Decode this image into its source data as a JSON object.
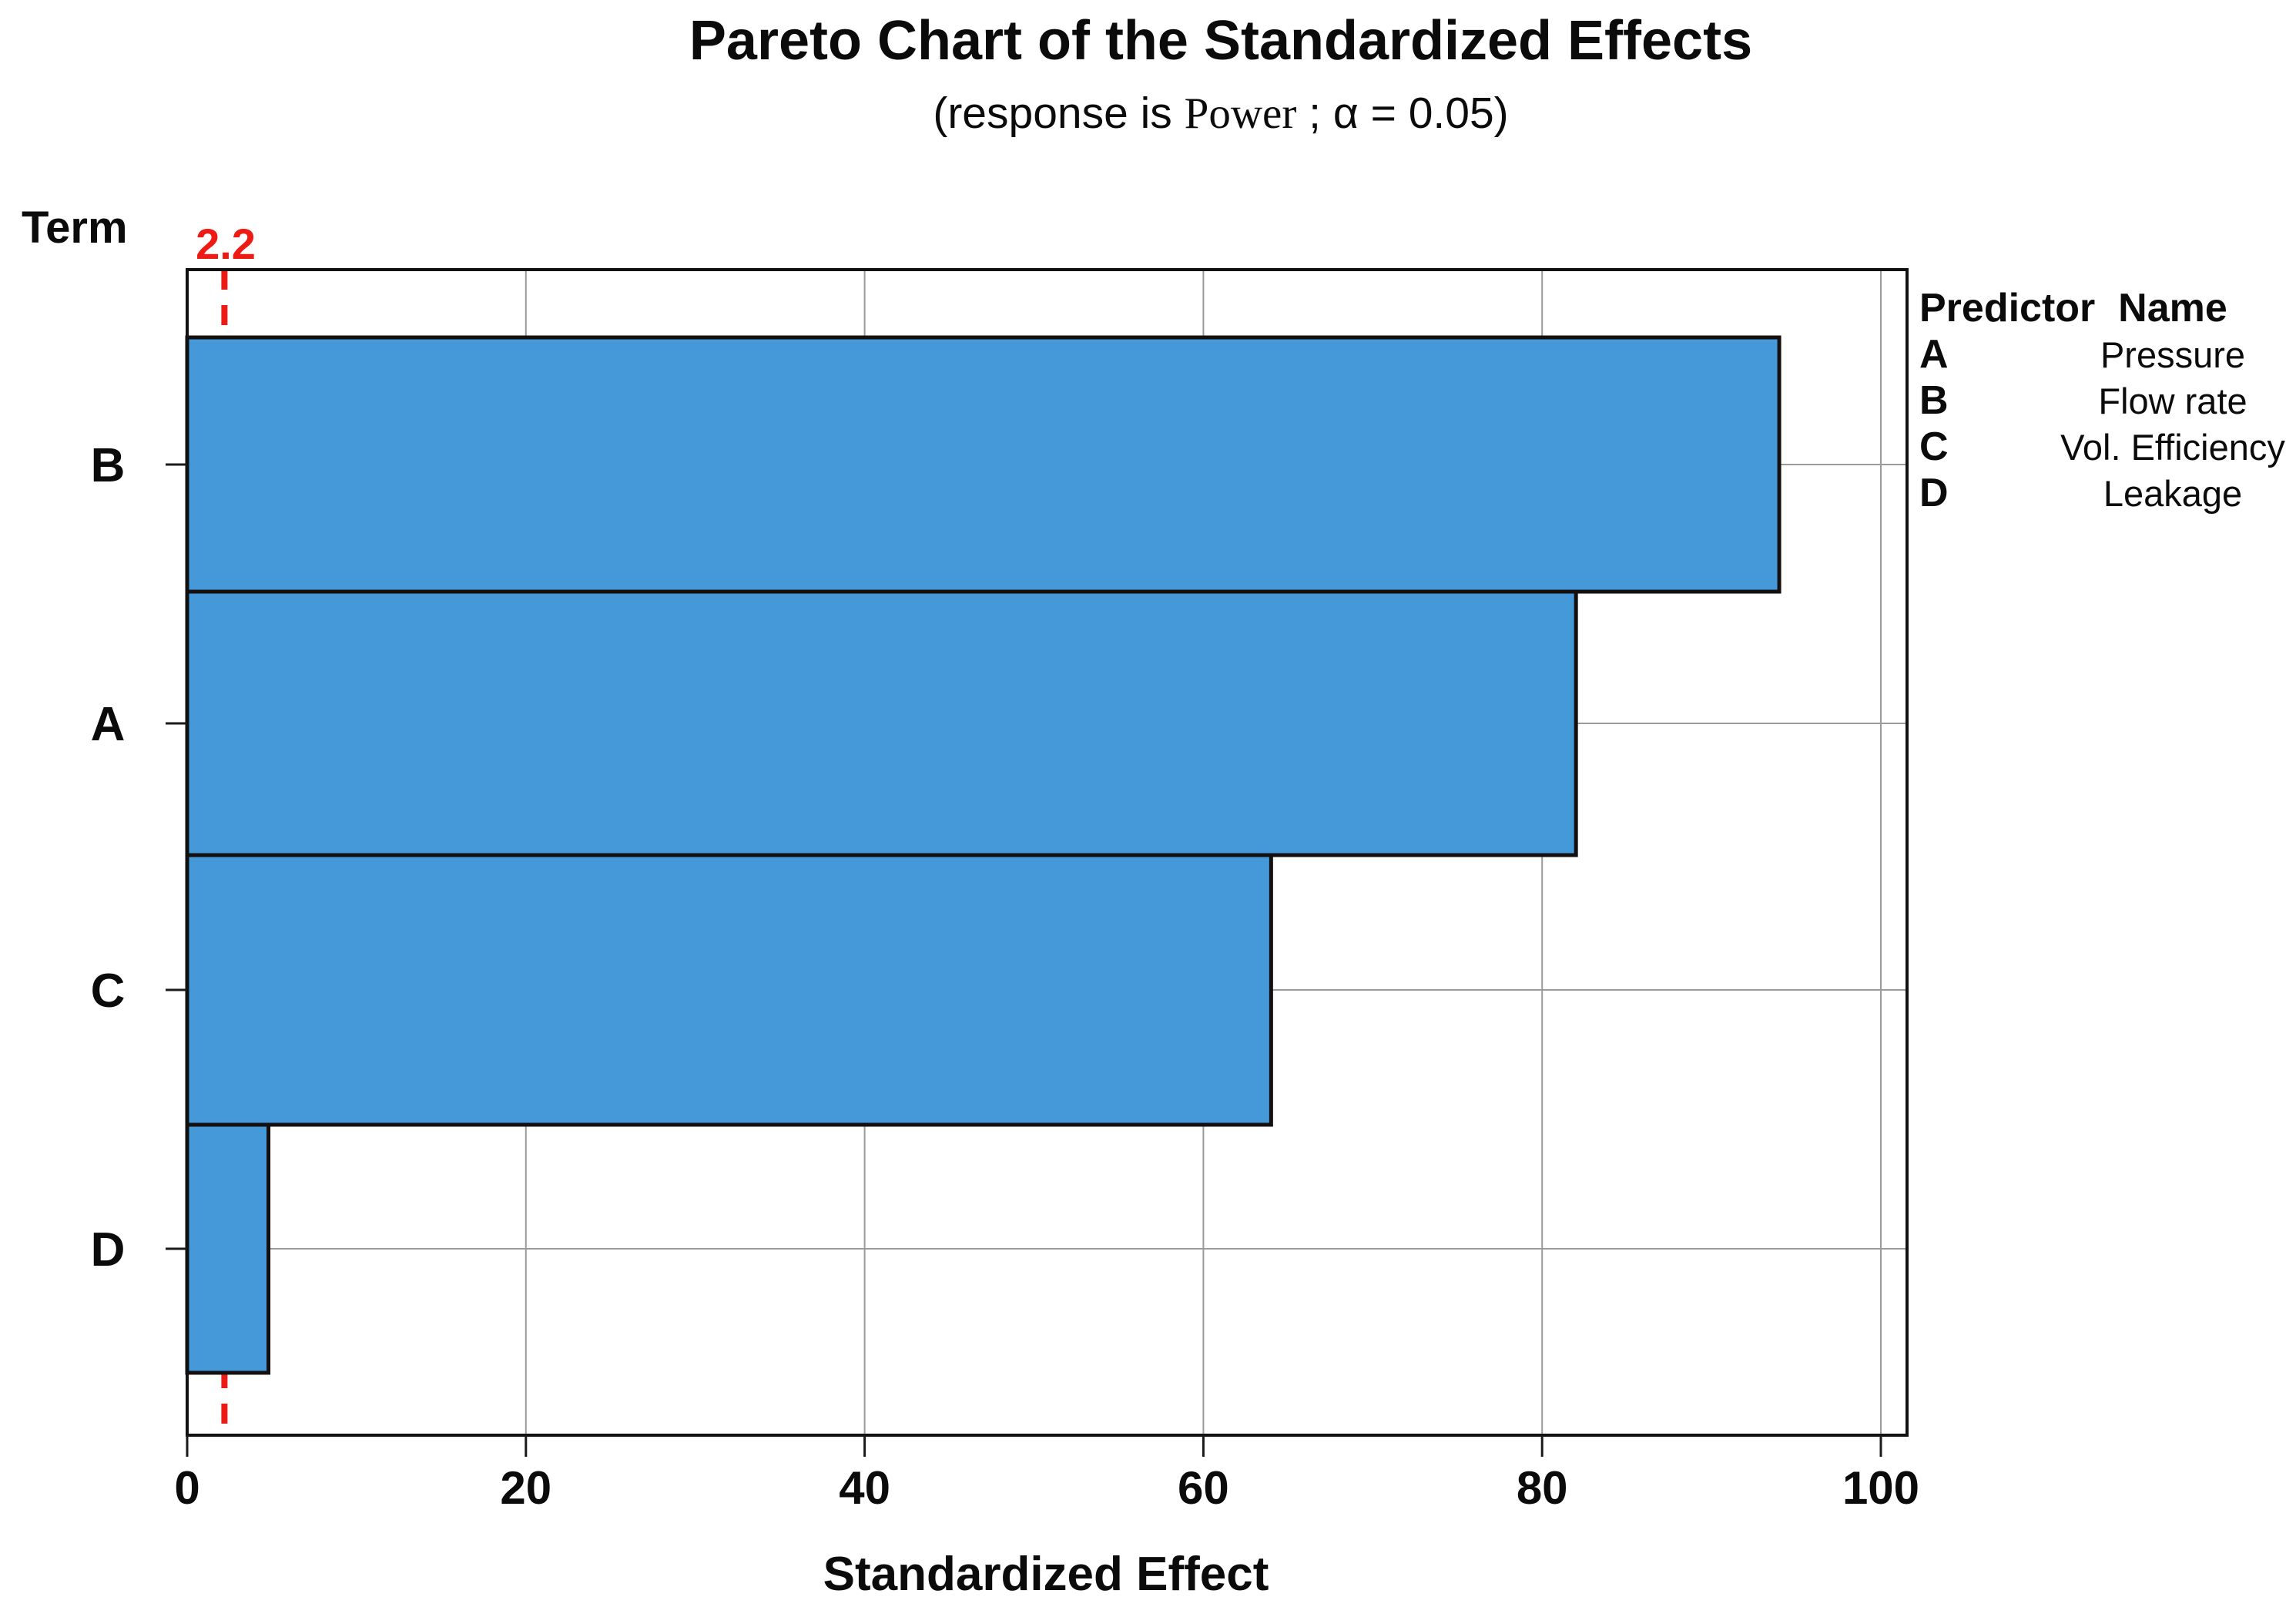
{
  "title": "Pareto Chart of the Standardized Effects",
  "subtitle_parts": {
    "prefix": "(response is ",
    "response_var": "Power",
    "suffix": " ; α = 0.05)"
  },
  "legend": {
    "header": {
      "predictor": "Predictor",
      "name": "Name"
    },
    "rows": [
      {
        "key": "A",
        "name": "Pressure"
      },
      {
        "key": "B",
        "name": "Flow rate"
      },
      {
        "key": "C",
        "name": "Vol. Efficiency"
      },
      {
        "key": "D",
        "name": "Leakage"
      }
    ]
  },
  "chart_data": {
    "type": "bar",
    "orientation": "horizontal",
    "title": "Pareto Chart of the Standardized Effects",
    "subtitle": "(response is Power ; α = 0.05)",
    "categories": [
      "B",
      "A",
      "C",
      "D"
    ],
    "values": [
      94,
      82,
      64,
      4.8
    ],
    "xlabel": "Standardized Effect",
    "ylabel": "Term",
    "xticks": [
      0,
      20,
      40,
      60,
      80,
      100
    ],
    "xlim": [
      0,
      101.5
    ],
    "reference_line": 2.2,
    "reference_line_label": "2.2",
    "alpha": 0.05,
    "grid": true,
    "legend_position": "right",
    "colors": {
      "bar_fill": "#4699d8",
      "bar_border": "#141010",
      "reference_line": "#ee1b15",
      "gridline": "#9b9b9b",
      "plot_border": "#111111",
      "tick": "#1a1a1a"
    }
  }
}
